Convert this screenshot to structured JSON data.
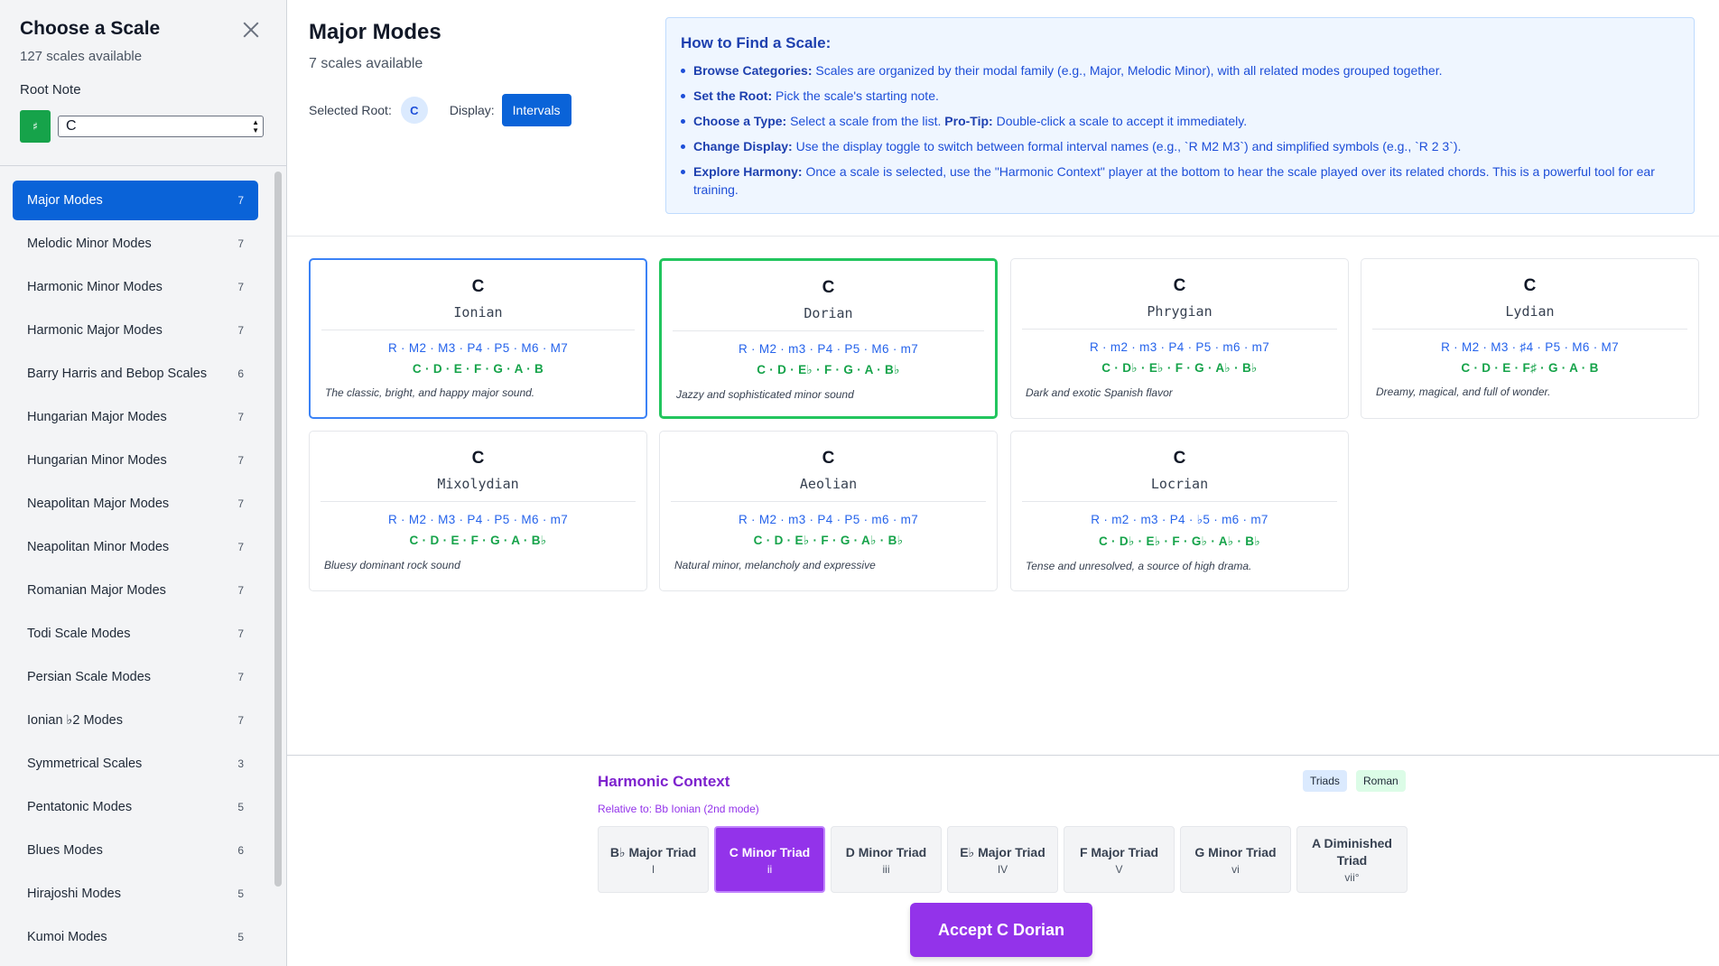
{
  "sidebar": {
    "title": "Choose a Scale",
    "count": "127 scales available",
    "root_label": "Root Note",
    "sharp_symbol": "♯",
    "root_value": "C",
    "categories": [
      {
        "label": "Major Modes",
        "count": "7",
        "active": true
      },
      {
        "label": "Melodic Minor Modes",
        "count": "7"
      },
      {
        "label": "Harmonic Minor Modes",
        "count": "7"
      },
      {
        "label": "Harmonic Major Modes",
        "count": "7"
      },
      {
        "label": "Barry Harris and Bebop Scales",
        "count": "6"
      },
      {
        "label": "Hungarian Major Modes",
        "count": "7"
      },
      {
        "label": "Hungarian Minor Modes",
        "count": "7"
      },
      {
        "label": "Neapolitan Major Modes",
        "count": "7"
      },
      {
        "label": "Neapolitan Minor Modes",
        "count": "7"
      },
      {
        "label": "Romanian Major Modes",
        "count": "7"
      },
      {
        "label": "Todi Scale Modes",
        "count": "7"
      },
      {
        "label": "Persian Scale Modes",
        "count": "7"
      },
      {
        "label": "Ionian ♭2 Modes",
        "count": "7"
      },
      {
        "label": "Symmetrical Scales",
        "count": "3"
      },
      {
        "label": "Pentatonic Modes",
        "count": "5"
      },
      {
        "label": "Blues Modes",
        "count": "6"
      },
      {
        "label": "Hirajoshi Modes",
        "count": "5"
      },
      {
        "label": "Kumoi Modes",
        "count": "5"
      }
    ]
  },
  "main": {
    "title": "Major Modes",
    "count": "7 scales available",
    "selected_root_label": "Selected Root:",
    "selected_root": "C",
    "display_label": "Display:",
    "display_value": "Intervals"
  },
  "help": {
    "title": "How to Find a Scale:",
    "items": [
      {
        "bold": "Browse Categories:",
        "text": " Scales are organized by their modal family (e.g., Major, Melodic Minor), with all related modes grouped together."
      },
      {
        "bold": "Set the Root:",
        "text": " Pick the scale's starting note."
      },
      {
        "bold": "Choose a Type:",
        "text": " Select a scale from the list. ",
        "bold2": "Pro-Tip:",
        "text2": " Double-click a scale to accept it immediately."
      },
      {
        "bold": "Change Display:",
        "text": " Use the display toggle to switch between formal interval names (e.g., `R M2 M3`) and simplified symbols (e.g., `R 2 3`)."
      },
      {
        "bold": "Explore Harmony:",
        "text": " Once a scale is selected, use the \"Harmonic Context\" player at the bottom to hear the scale played over its related chords. This is a powerful tool for ear training."
      }
    ]
  },
  "scales": [
    {
      "root": "C",
      "mode": "Ionian",
      "intervals": "R · M2 · M3 · P4 · P5 · M6 · M7",
      "notes": "C · D · E · F · G · A · B",
      "desc": "The classic, bright, and happy major sound.",
      "highlight": "blue"
    },
    {
      "root": "C",
      "mode": "Dorian",
      "intervals": "R · M2 · m3 · P4 · P5 · M6 · m7",
      "notes": "C · D · E♭ · F · G · A · B♭",
      "desc": "Jazzy and sophisticated minor sound",
      "highlight": "green"
    },
    {
      "root": "C",
      "mode": "Phrygian",
      "intervals": "R · m2 · m3 · P4 · P5 · m6 · m7",
      "notes": "C · D♭ · E♭ · F · G · A♭ · B♭",
      "desc": "Dark and exotic Spanish flavor"
    },
    {
      "root": "C",
      "mode": "Lydian",
      "intervals": "R · M2 · M3 · ♯4 · P5 · M6 · M7",
      "notes": "C · D · E · F♯ · G · A · B",
      "desc": "Dreamy, magical, and full of wonder."
    },
    {
      "root": "C",
      "mode": "Mixolydian",
      "intervals": "R · M2 · M3 · P4 · P5 · M6 · m7",
      "notes": "C · D · E · F · G · A · B♭",
      "desc": "Bluesy dominant rock sound"
    },
    {
      "root": "C",
      "mode": "Aeolian",
      "intervals": "R · M2 · m3 · P4 · P5 · m6 · m7",
      "notes": "C · D · E♭ · F · G · A♭ · B♭",
      "desc": "Natural minor, melancholy and expressive"
    },
    {
      "root": "C",
      "mode": "Locrian",
      "intervals": "R · m2 · m3 · P4 · ♭5 · m6 · m7",
      "notes": "C · D♭ · E♭ · F · G♭ · A♭ · B♭",
      "desc": "Tense and unresolved, a source of high drama."
    }
  ],
  "harmonic": {
    "title": "Harmonic Context",
    "relative": "Relative to: Bb Ionian (2nd mode)",
    "tag_triads": "Triads",
    "tag_roman": "Roman",
    "chords": [
      {
        "name": "B♭ Major Triad",
        "roman": "I"
      },
      {
        "name": "C Minor Triad",
        "roman": "ii",
        "active": true
      },
      {
        "name": "D Minor Triad",
        "roman": "iii"
      },
      {
        "name": "E♭ Major Triad",
        "roman": "IV"
      },
      {
        "name": "F Major Triad",
        "roman": "V"
      },
      {
        "name": "G Minor Triad",
        "roman": "vi"
      },
      {
        "name": "A Diminished Triad",
        "roman": "vii°"
      }
    ],
    "accept_label": "Accept C Dorian"
  }
}
